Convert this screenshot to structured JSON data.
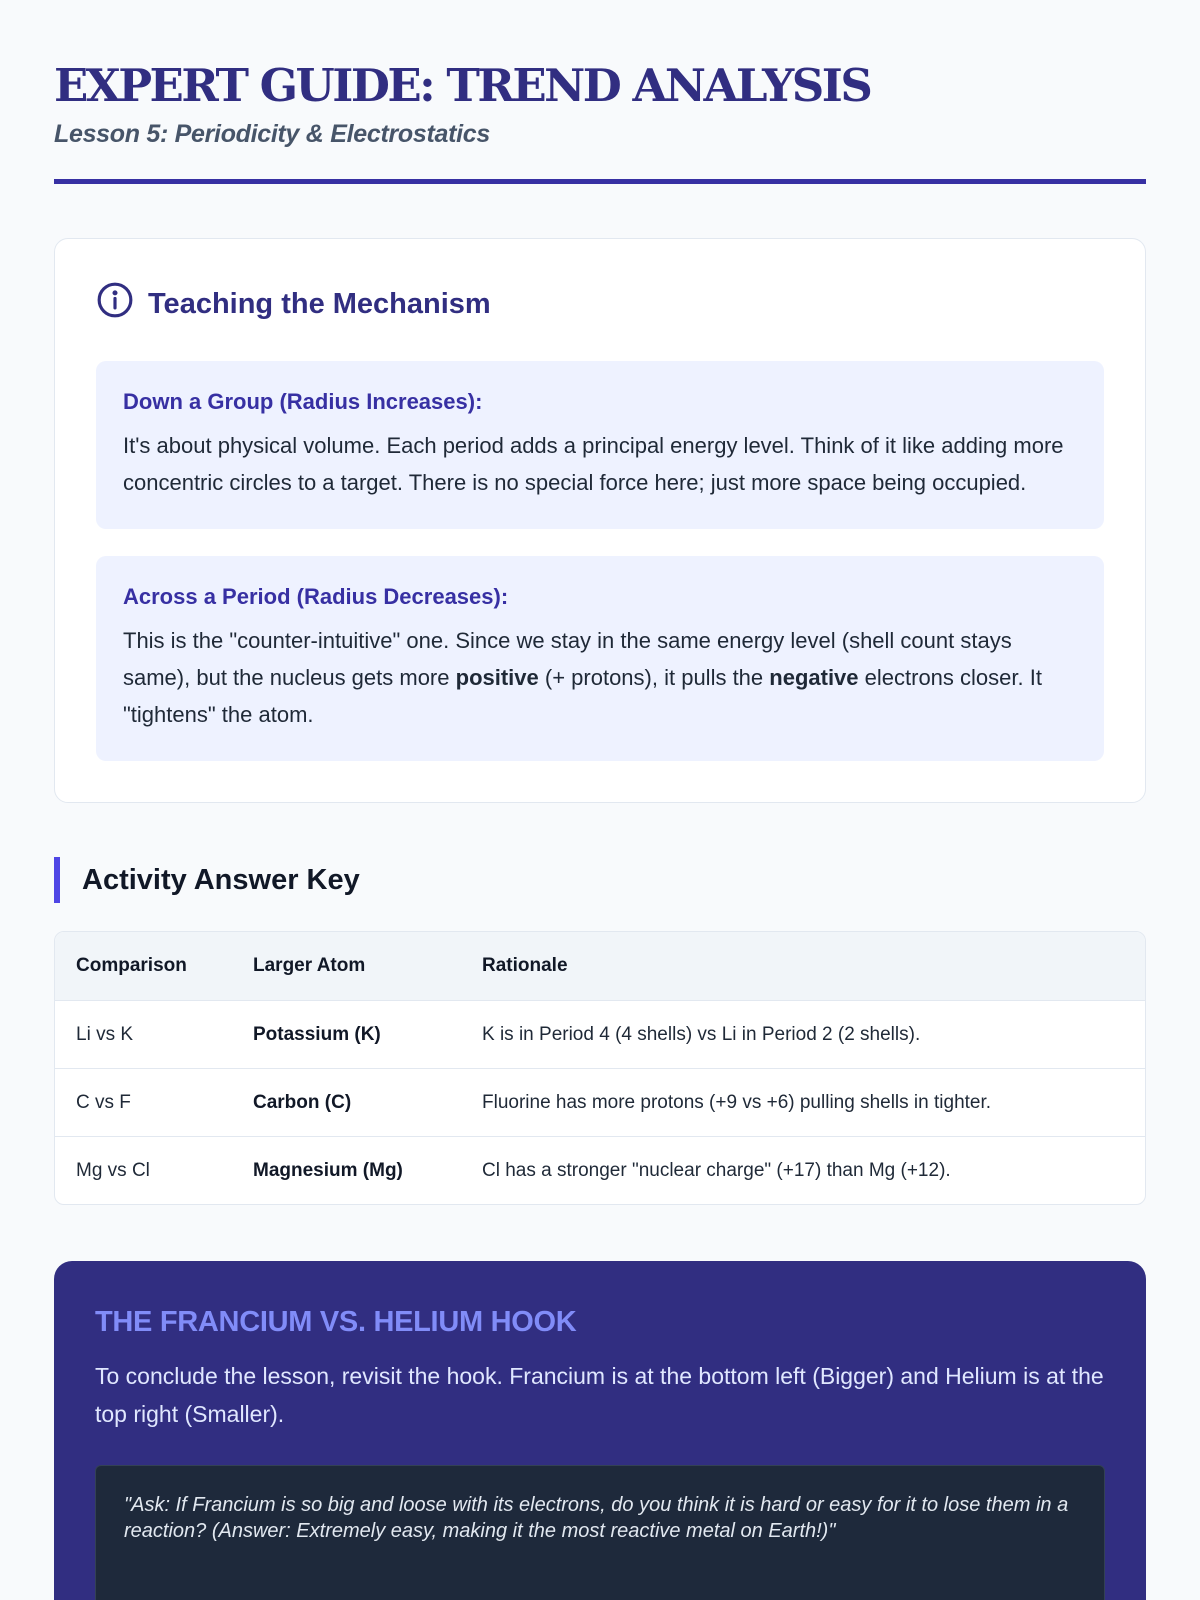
{
  "header": {
    "title": "EXPERT GUIDE: TREND ANALYSIS",
    "subtitle": "Lesson 5: Periodicity & Electrostatics"
  },
  "mechanism": {
    "icon": "info-icon",
    "title": "Teaching the Mechanism",
    "group": {
      "heading": "Down a Group (Radius Increases):",
      "text": "It's about physical volume. Each period adds a principal energy level. Think of it like adding more concentric circles to a target. There is no special force here; just more space being occupied."
    },
    "period": {
      "heading": "Across a Period (Radius Decreases):",
      "t1": "This is the \"counter-intuitive\" one. Since we stay in the same energy level (shell count stays same), but the nucleus gets more ",
      "b1": "positive",
      "t2": " (+ protons), it pulls the ",
      "b2": "negative",
      "t3": " electrons closer. It \"tightens\" the atom."
    }
  },
  "answer_key": {
    "title": "Activity Answer Key",
    "columns": [
      "Comparison",
      "Larger Atom",
      "Rationale"
    ],
    "rows": [
      [
        "Li vs K",
        "Potassium (K)",
        "K is in Period 4 (4 shells) vs Li in Period 2 (2 shells)."
      ],
      [
        "C vs F",
        "Carbon (C)",
        "Fluorine has more protons (+9 vs +6) pulling shells in tighter."
      ],
      [
        "Mg vs Cl",
        "Magnesium (Mg)",
        "Cl has a stronger \"nuclear charge\" (+17) than Mg (+12)."
      ]
    ]
  },
  "hook": {
    "title": "THE FRANCIUM VS. HELIUM HOOK",
    "text": "To conclude the lesson, revisit the hook. Francium is at the bottom left (Bigger) and Helium is at the top right (Smaller).",
    "quote": "\"Ask: If Francium is so big and loose with its electrons, do you think it is hard or easy for it to lose them in a reaction? (Answer: Extremely easy, making it the most reactive metal on Earth!)\""
  }
}
